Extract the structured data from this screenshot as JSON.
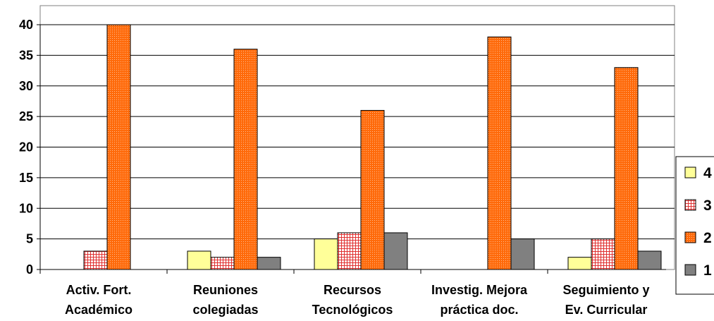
{
  "chart_data": {
    "type": "bar",
    "title": "",
    "xlabel": "",
    "ylabel": "",
    "ylim": [
      0,
      40
    ],
    "yticks": [
      0,
      5,
      10,
      15,
      20,
      25,
      30,
      35,
      40
    ],
    "grid": true,
    "legend_position": "right",
    "categories": [
      [
        "Activ. Fort.",
        "Académico"
      ],
      [
        "Reuniones",
        "colegiadas"
      ],
      [
        "Recursos",
        "Tecnológicos"
      ],
      [
        "Investig. Mejora",
        "práctica doc."
      ],
      [
        "Seguimiento y",
        "Ev. Curricular"
      ]
    ],
    "series": [
      {
        "name": "4",
        "color": "#ffff99",
        "pattern": "solid",
        "values": [
          0,
          3,
          5,
          0,
          2
        ]
      },
      {
        "name": "3",
        "color": "#ff9999",
        "pattern": "grid",
        "values": [
          3,
          2,
          6,
          0,
          5
        ]
      },
      {
        "name": "2",
        "color": "#ff6600",
        "pattern": "dots",
        "values": [
          40,
          36,
          26,
          38,
          33
        ]
      },
      {
        "name": "1",
        "color": "#808080",
        "pattern": "solid",
        "values": [
          0,
          2,
          6,
          5,
          3
        ]
      }
    ],
    "legend_order": [
      "4",
      "3",
      "2",
      "1"
    ]
  }
}
